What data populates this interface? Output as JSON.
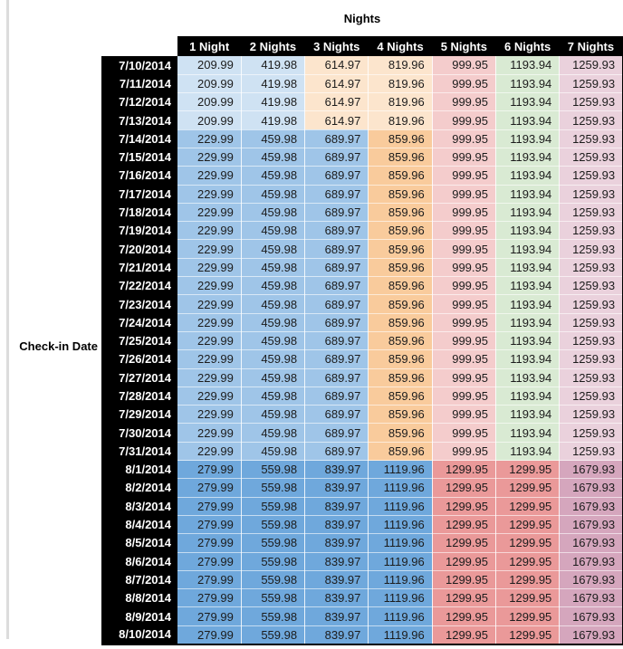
{
  "table": {
    "title": "Nights",
    "row_axis_label": "Check-in Date",
    "columns": [
      "1 Night",
      "2 Nights",
      "3 Nights",
      "4 Nights",
      "5 Nights",
      "6 Nights",
      "7 Nights"
    ],
    "header_bg": "#000000",
    "header_text_color": "#ffffff",
    "edge_strip_color": "#dcdcdc",
    "color_groups": {
      "A": [
        "#cfe2f3",
        "#cfe2f3",
        "#fce5cd",
        "#fce5cd",
        "#f4cccc",
        "#d9ead3",
        "#ead1dc"
      ],
      "B": [
        "#9fc5e8",
        "#9fc5e8",
        "#9fc5e8",
        "#f9cb9c",
        "#f4cccc",
        "#d9ead3",
        "#ead1dc"
      ],
      "C": [
        "#6fa8dc",
        "#6fa8dc",
        "#6fa8dc",
        "#6fa8dc",
        "#ea9999",
        "#ea9999",
        "#d5a6bd"
      ]
    },
    "rows": [
      {
        "date": "7/10/2014",
        "group": "A",
        "values": [
          "209.99",
          "419.98",
          "614.97",
          "819.96",
          "999.95",
          "1193.94",
          "1259.93"
        ]
      },
      {
        "date": "7/11/2014",
        "group": "A",
        "values": [
          "209.99",
          "419.98",
          "614.97",
          "819.96",
          "999.95",
          "1193.94",
          "1259.93"
        ]
      },
      {
        "date": "7/12/2014",
        "group": "A",
        "values": [
          "209.99",
          "419.98",
          "614.97",
          "819.96",
          "999.95",
          "1193.94",
          "1259.93"
        ]
      },
      {
        "date": "7/13/2014",
        "group": "A",
        "values": [
          "209.99",
          "419.98",
          "614.97",
          "819.96",
          "999.95",
          "1193.94",
          "1259.93"
        ]
      },
      {
        "date": "7/14/2014",
        "group": "B",
        "values": [
          "229.99",
          "459.98",
          "689.97",
          "859.96",
          "999.95",
          "1193.94",
          "1259.93"
        ]
      },
      {
        "date": "7/15/2014",
        "group": "B",
        "values": [
          "229.99",
          "459.98",
          "689.97",
          "859.96",
          "999.95",
          "1193.94",
          "1259.93"
        ]
      },
      {
        "date": "7/16/2014",
        "group": "B",
        "values": [
          "229.99",
          "459.98",
          "689.97",
          "859.96",
          "999.95",
          "1193.94",
          "1259.93"
        ]
      },
      {
        "date": "7/17/2014",
        "group": "B",
        "values": [
          "229.99",
          "459.98",
          "689.97",
          "859.96",
          "999.95",
          "1193.94",
          "1259.93"
        ]
      },
      {
        "date": "7/18/2014",
        "group": "B",
        "values": [
          "229.99",
          "459.98",
          "689.97",
          "859.96",
          "999.95",
          "1193.94",
          "1259.93"
        ]
      },
      {
        "date": "7/19/2014",
        "group": "B",
        "values": [
          "229.99",
          "459.98",
          "689.97",
          "859.96",
          "999.95",
          "1193.94",
          "1259.93"
        ]
      },
      {
        "date": "7/20/2014",
        "group": "B",
        "values": [
          "229.99",
          "459.98",
          "689.97",
          "859.96",
          "999.95",
          "1193.94",
          "1259.93"
        ]
      },
      {
        "date": "7/21/2014",
        "group": "B",
        "values": [
          "229.99",
          "459.98",
          "689.97",
          "859.96",
          "999.95",
          "1193.94",
          "1259.93"
        ]
      },
      {
        "date": "7/22/2014",
        "group": "B",
        "values": [
          "229.99",
          "459.98",
          "689.97",
          "859.96",
          "999.95",
          "1193.94",
          "1259.93"
        ]
      },
      {
        "date": "7/23/2014",
        "group": "B",
        "values": [
          "229.99",
          "459.98",
          "689.97",
          "859.96",
          "999.95",
          "1193.94",
          "1259.93"
        ]
      },
      {
        "date": "7/24/2014",
        "group": "B",
        "values": [
          "229.99",
          "459.98",
          "689.97",
          "859.96",
          "999.95",
          "1193.94",
          "1259.93"
        ]
      },
      {
        "date": "7/25/2014",
        "group": "B",
        "values": [
          "229.99",
          "459.98",
          "689.97",
          "859.96",
          "999.95",
          "1193.94",
          "1259.93"
        ]
      },
      {
        "date": "7/26/2014",
        "group": "B",
        "values": [
          "229.99",
          "459.98",
          "689.97",
          "859.96",
          "999.95",
          "1193.94",
          "1259.93"
        ]
      },
      {
        "date": "7/27/2014",
        "group": "B",
        "values": [
          "229.99",
          "459.98",
          "689.97",
          "859.96",
          "999.95",
          "1193.94",
          "1259.93"
        ]
      },
      {
        "date": "7/28/2014",
        "group": "B",
        "values": [
          "229.99",
          "459.98",
          "689.97",
          "859.96",
          "999.95",
          "1193.94",
          "1259.93"
        ]
      },
      {
        "date": "7/29/2014",
        "group": "B",
        "values": [
          "229.99",
          "459.98",
          "689.97",
          "859.96",
          "999.95",
          "1193.94",
          "1259.93"
        ]
      },
      {
        "date": "7/30/2014",
        "group": "B",
        "values": [
          "229.99",
          "459.98",
          "689.97",
          "859.96",
          "999.95",
          "1193.94",
          "1259.93"
        ]
      },
      {
        "date": "7/31/2014",
        "group": "B",
        "values": [
          "229.99",
          "459.98",
          "689.97",
          "859.96",
          "999.95",
          "1193.94",
          "1259.93"
        ]
      },
      {
        "date": "8/1/2014",
        "group": "C",
        "values": [
          "279.99",
          "559.98",
          "839.97",
          "1119.96",
          "1299.95",
          "1299.95",
          "1679.93"
        ]
      },
      {
        "date": "8/2/2014",
        "group": "C",
        "values": [
          "279.99",
          "559.98",
          "839.97",
          "1119.96",
          "1299.95",
          "1299.95",
          "1679.93"
        ]
      },
      {
        "date": "8/3/2014",
        "group": "C",
        "values": [
          "279.99",
          "559.98",
          "839.97",
          "1119.96",
          "1299.95",
          "1299.95",
          "1679.93"
        ]
      },
      {
        "date": "8/4/2014",
        "group": "C",
        "values": [
          "279.99",
          "559.98",
          "839.97",
          "1119.96",
          "1299.95",
          "1299.95",
          "1679.93"
        ]
      },
      {
        "date": "8/5/2014",
        "group": "C",
        "values": [
          "279.99",
          "559.98",
          "839.97",
          "1119.96",
          "1299.95",
          "1299.95",
          "1679.93"
        ]
      },
      {
        "date": "8/6/2014",
        "group": "C",
        "values": [
          "279.99",
          "559.98",
          "839.97",
          "1119.96",
          "1299.95",
          "1299.95",
          "1679.93"
        ]
      },
      {
        "date": "8/7/2014",
        "group": "C",
        "values": [
          "279.99",
          "559.98",
          "839.97",
          "1119.96",
          "1299.95",
          "1299.95",
          "1679.93"
        ]
      },
      {
        "date": "8/8/2014",
        "group": "C",
        "values": [
          "279.99",
          "559.98",
          "839.97",
          "1119.96",
          "1299.95",
          "1299.95",
          "1679.93"
        ]
      },
      {
        "date": "8/9/2014",
        "group": "C",
        "values": [
          "279.99",
          "559.98",
          "839.97",
          "1119.96",
          "1299.95",
          "1299.95",
          "1679.93"
        ]
      },
      {
        "date": "8/10/2014",
        "group": "C",
        "values": [
          "279.99",
          "559.98",
          "839.97",
          "1119.96",
          "1299.95",
          "1299.95",
          "1679.93"
        ]
      }
    ]
  }
}
